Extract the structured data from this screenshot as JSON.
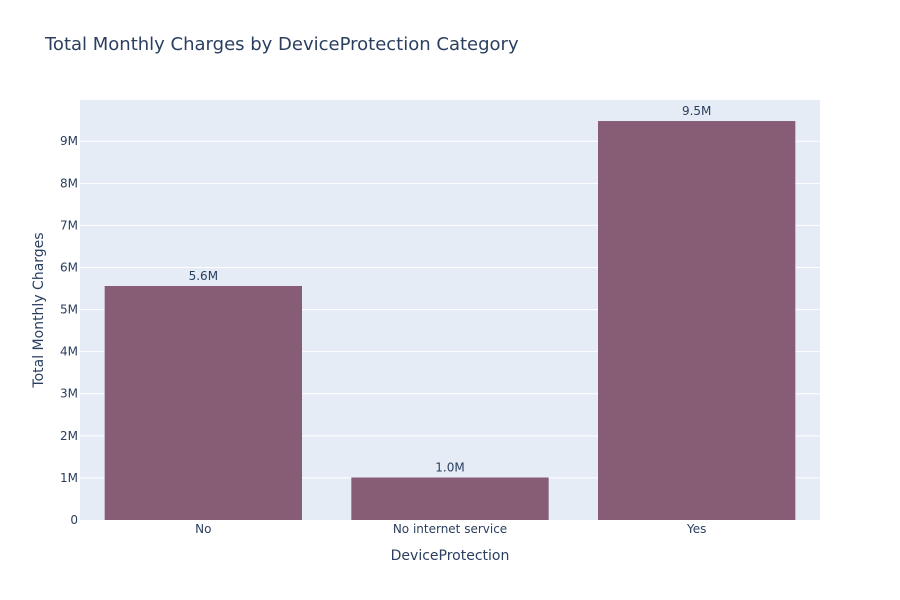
{
  "chart_data": {
    "type": "bar",
    "title": "Total Monthly Charges by DeviceProtection Category",
    "xlabel": "DeviceProtection",
    "ylabel": "Total Monthly Charges",
    "categories": [
      "No",
      "No internet service",
      "Yes"
    ],
    "values": [
      5560000,
      1010000,
      9480000
    ],
    "data_labels": [
      "5.6M",
      "1.0M",
      "9.5M"
    ],
    "ylim": [
      0,
      9980000
    ],
    "yticks": [
      0,
      1000000,
      2000000,
      3000000,
      4000000,
      5000000,
      6000000,
      7000000,
      8000000,
      9000000
    ],
    "ytick_labels": [
      "0",
      "1M",
      "2M",
      "3M",
      "4M",
      "5M",
      "6M",
      "7M",
      "8M",
      "9M"
    ],
    "grid": true,
    "legend": "none",
    "colors": {
      "bar": "#865d75",
      "plot_background": "#e5ecf6",
      "gridline": "#ffffff",
      "text": "#2a3f5f"
    }
  }
}
